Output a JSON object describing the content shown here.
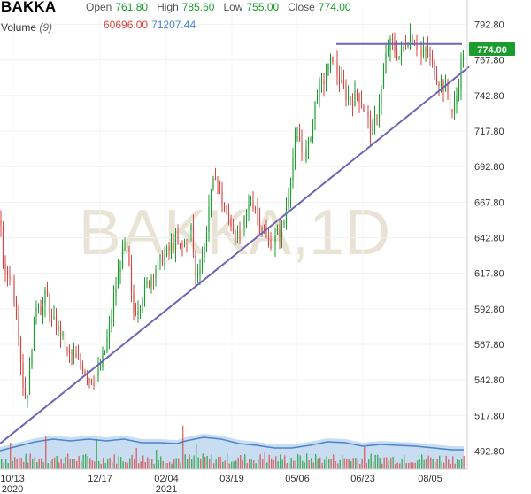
{
  "header": {
    "symbol": "BAKKA",
    "open_label": "Open",
    "open_value": "761.80",
    "high_label": "High",
    "high_value": "785.60",
    "low_label": "Low",
    "low_value": "755.00",
    "close_label": "Close",
    "close_value": "774.00",
    "volume_label": "Volume",
    "volume_period": "(9)",
    "volume_value": "60696.00",
    "volume_ma_value": "71207.44"
  },
  "watermark": "BAKKA,1D",
  "last_price_badge": "774.00",
  "colors": {
    "up": "#1a9c2e",
    "down": "#d64541",
    "trendline": "#6d66b5",
    "volume_fill": "#c9ddf2",
    "volume_line": "#4a84c9",
    "badge": "#1a9c2e"
  },
  "chart_data": {
    "type": "candlestick",
    "ylim": [
      480,
      805
    ],
    "y_ticks": [
      "792.80",
      "767.80",
      "742.80",
      "717.80",
      "692.80",
      "667.80",
      "642.80",
      "617.80",
      "592.80",
      "567.80",
      "542.80",
      "517.80",
      "492.80"
    ],
    "x_ticks": [
      {
        "label": "10/13",
        "sub": "2020"
      },
      {
        "label": "12/17",
        "sub": ""
      },
      {
        "label": "02/04",
        "sub": "2021"
      },
      {
        "label": "03/19",
        "sub": ""
      },
      {
        "label": "05/06",
        "sub": ""
      },
      {
        "label": "06/23",
        "sub": ""
      },
      {
        "label": "08/05",
        "sub": ""
      }
    ],
    "price_path": [
      [
        0,
        655
      ],
      [
        5,
        615
      ],
      [
        12,
        618
      ],
      [
        20,
        585
      ],
      [
        25,
        545
      ],
      [
        28,
        530
      ],
      [
        32,
        538
      ],
      [
        36,
        568
      ],
      [
        42,
        602
      ],
      [
        47,
        590
      ],
      [
        52,
        604
      ],
      [
        58,
        585
      ],
      [
        64,
        580
      ],
      [
        70,
        575
      ],
      [
        76,
        560
      ],
      [
        82,
        560
      ],
      [
        88,
        555
      ],
      [
        94,
        552
      ],
      [
        100,
        545
      ],
      [
        106,
        543
      ],
      [
        112,
        548
      ],
      [
        118,
        562
      ],
      [
        124,
        580
      ],
      [
        130,
        605
      ],
      [
        136,
        625
      ],
      [
        140,
        640
      ],
      [
        145,
        628
      ],
      [
        150,
        590
      ],
      [
        156,
        595
      ],
      [
        162,
        604
      ],
      [
        168,
        612
      ],
      [
        174,
        620
      ],
      [
        180,
        625
      ],
      [
        186,
        630
      ],
      [
        192,
        635
      ],
      [
        198,
        640
      ],
      [
        204,
        635
      ],
      [
        210,
        640
      ],
      [
        216,
        650
      ],
      [
        221,
        615
      ],
      [
        226,
        625
      ],
      [
        231,
        635
      ],
      [
        236,
        665
      ],
      [
        241,
        680
      ],
      [
        244,
        690
      ],
      [
        248,
        675
      ],
      [
        254,
        660
      ],
      [
        260,
        655
      ],
      [
        266,
        645
      ],
      [
        272,
        640
      ],
      [
        278,
        660
      ],
      [
        284,
        670
      ],
      [
        290,
        662
      ],
      [
        296,
        650
      ],
      [
        302,
        640
      ],
      [
        308,
        640
      ],
      [
        314,
        645
      ],
      [
        320,
        650
      ],
      [
        326,
        675
      ],
      [
        330,
        695
      ],
      [
        334,
        710
      ],
      [
        338,
        712
      ],
      [
        342,
        700
      ],
      [
        348,
        705
      ],
      [
        352,
        720
      ],
      [
        358,
        745
      ],
      [
        364,
        750
      ],
      [
        370,
        760
      ],
      [
        376,
        770
      ],
      [
        380,
        760
      ],
      [
        386,
        750
      ],
      [
        392,
        742
      ],
      [
        398,
        740
      ],
      [
        404,
        745
      ],
      [
        410,
        735
      ],
      [
        416,
        725
      ],
      [
        420,
        715
      ],
      [
        426,
        730
      ],
      [
        432,
        750
      ],
      [
        436,
        770
      ],
      [
        440,
        780
      ],
      [
        446,
        775
      ],
      [
        452,
        770
      ],
      [
        458,
        780
      ],
      [
        464,
        785
      ],
      [
        470,
        780
      ],
      [
        476,
        770
      ],
      [
        482,
        775
      ],
      [
        488,
        765
      ],
      [
        494,
        755
      ],
      [
        500,
        750
      ],
      [
        506,
        745
      ],
      [
        510,
        730
      ],
      [
        514,
        735
      ],
      [
        518,
        750
      ],
      [
        522,
        770
      ],
      [
        524,
        774
      ]
    ],
    "volume_path": [
      [
        0,
        25
      ],
      [
        20,
        30
      ],
      [
        40,
        35
      ],
      [
        60,
        38
      ],
      [
        80,
        36
      ],
      [
        100,
        38
      ],
      [
        120,
        36
      ],
      [
        140,
        38
      ],
      [
        160,
        34
      ],
      [
        180,
        34
      ],
      [
        200,
        33
      ],
      [
        210,
        36
      ],
      [
        230,
        40
      ],
      [
        250,
        38
      ],
      [
        270,
        33
      ],
      [
        290,
        31
      ],
      [
        310,
        28
      ],
      [
        330,
        28
      ],
      [
        350,
        31
      ],
      [
        370,
        35
      ],
      [
        390,
        34
      ],
      [
        410,
        30
      ],
      [
        430,
        32
      ],
      [
        450,
        31
      ],
      [
        470,
        30
      ],
      [
        490,
        28
      ],
      [
        510,
        26
      ],
      [
        524,
        26
      ]
    ],
    "volume_spikes": [
      [
        11,
        30
      ],
      [
        50,
        38
      ],
      [
        108,
        34
      ],
      [
        153,
        24
      ],
      [
        175,
        22
      ],
      [
        205,
        49
      ],
      [
        220,
        29
      ],
      [
        298,
        19
      ],
      [
        356,
        17
      ],
      [
        412,
        25
      ],
      [
        455,
        16
      ],
      [
        518,
        10
      ]
    ],
    "trendlines": [
      {
        "from": [
          0,
          498
        ],
        "to": [
          530,
          763
        ]
      },
      {
        "from": [
          380,
          779
        ],
        "to": [
          522,
          779
        ]
      }
    ]
  }
}
